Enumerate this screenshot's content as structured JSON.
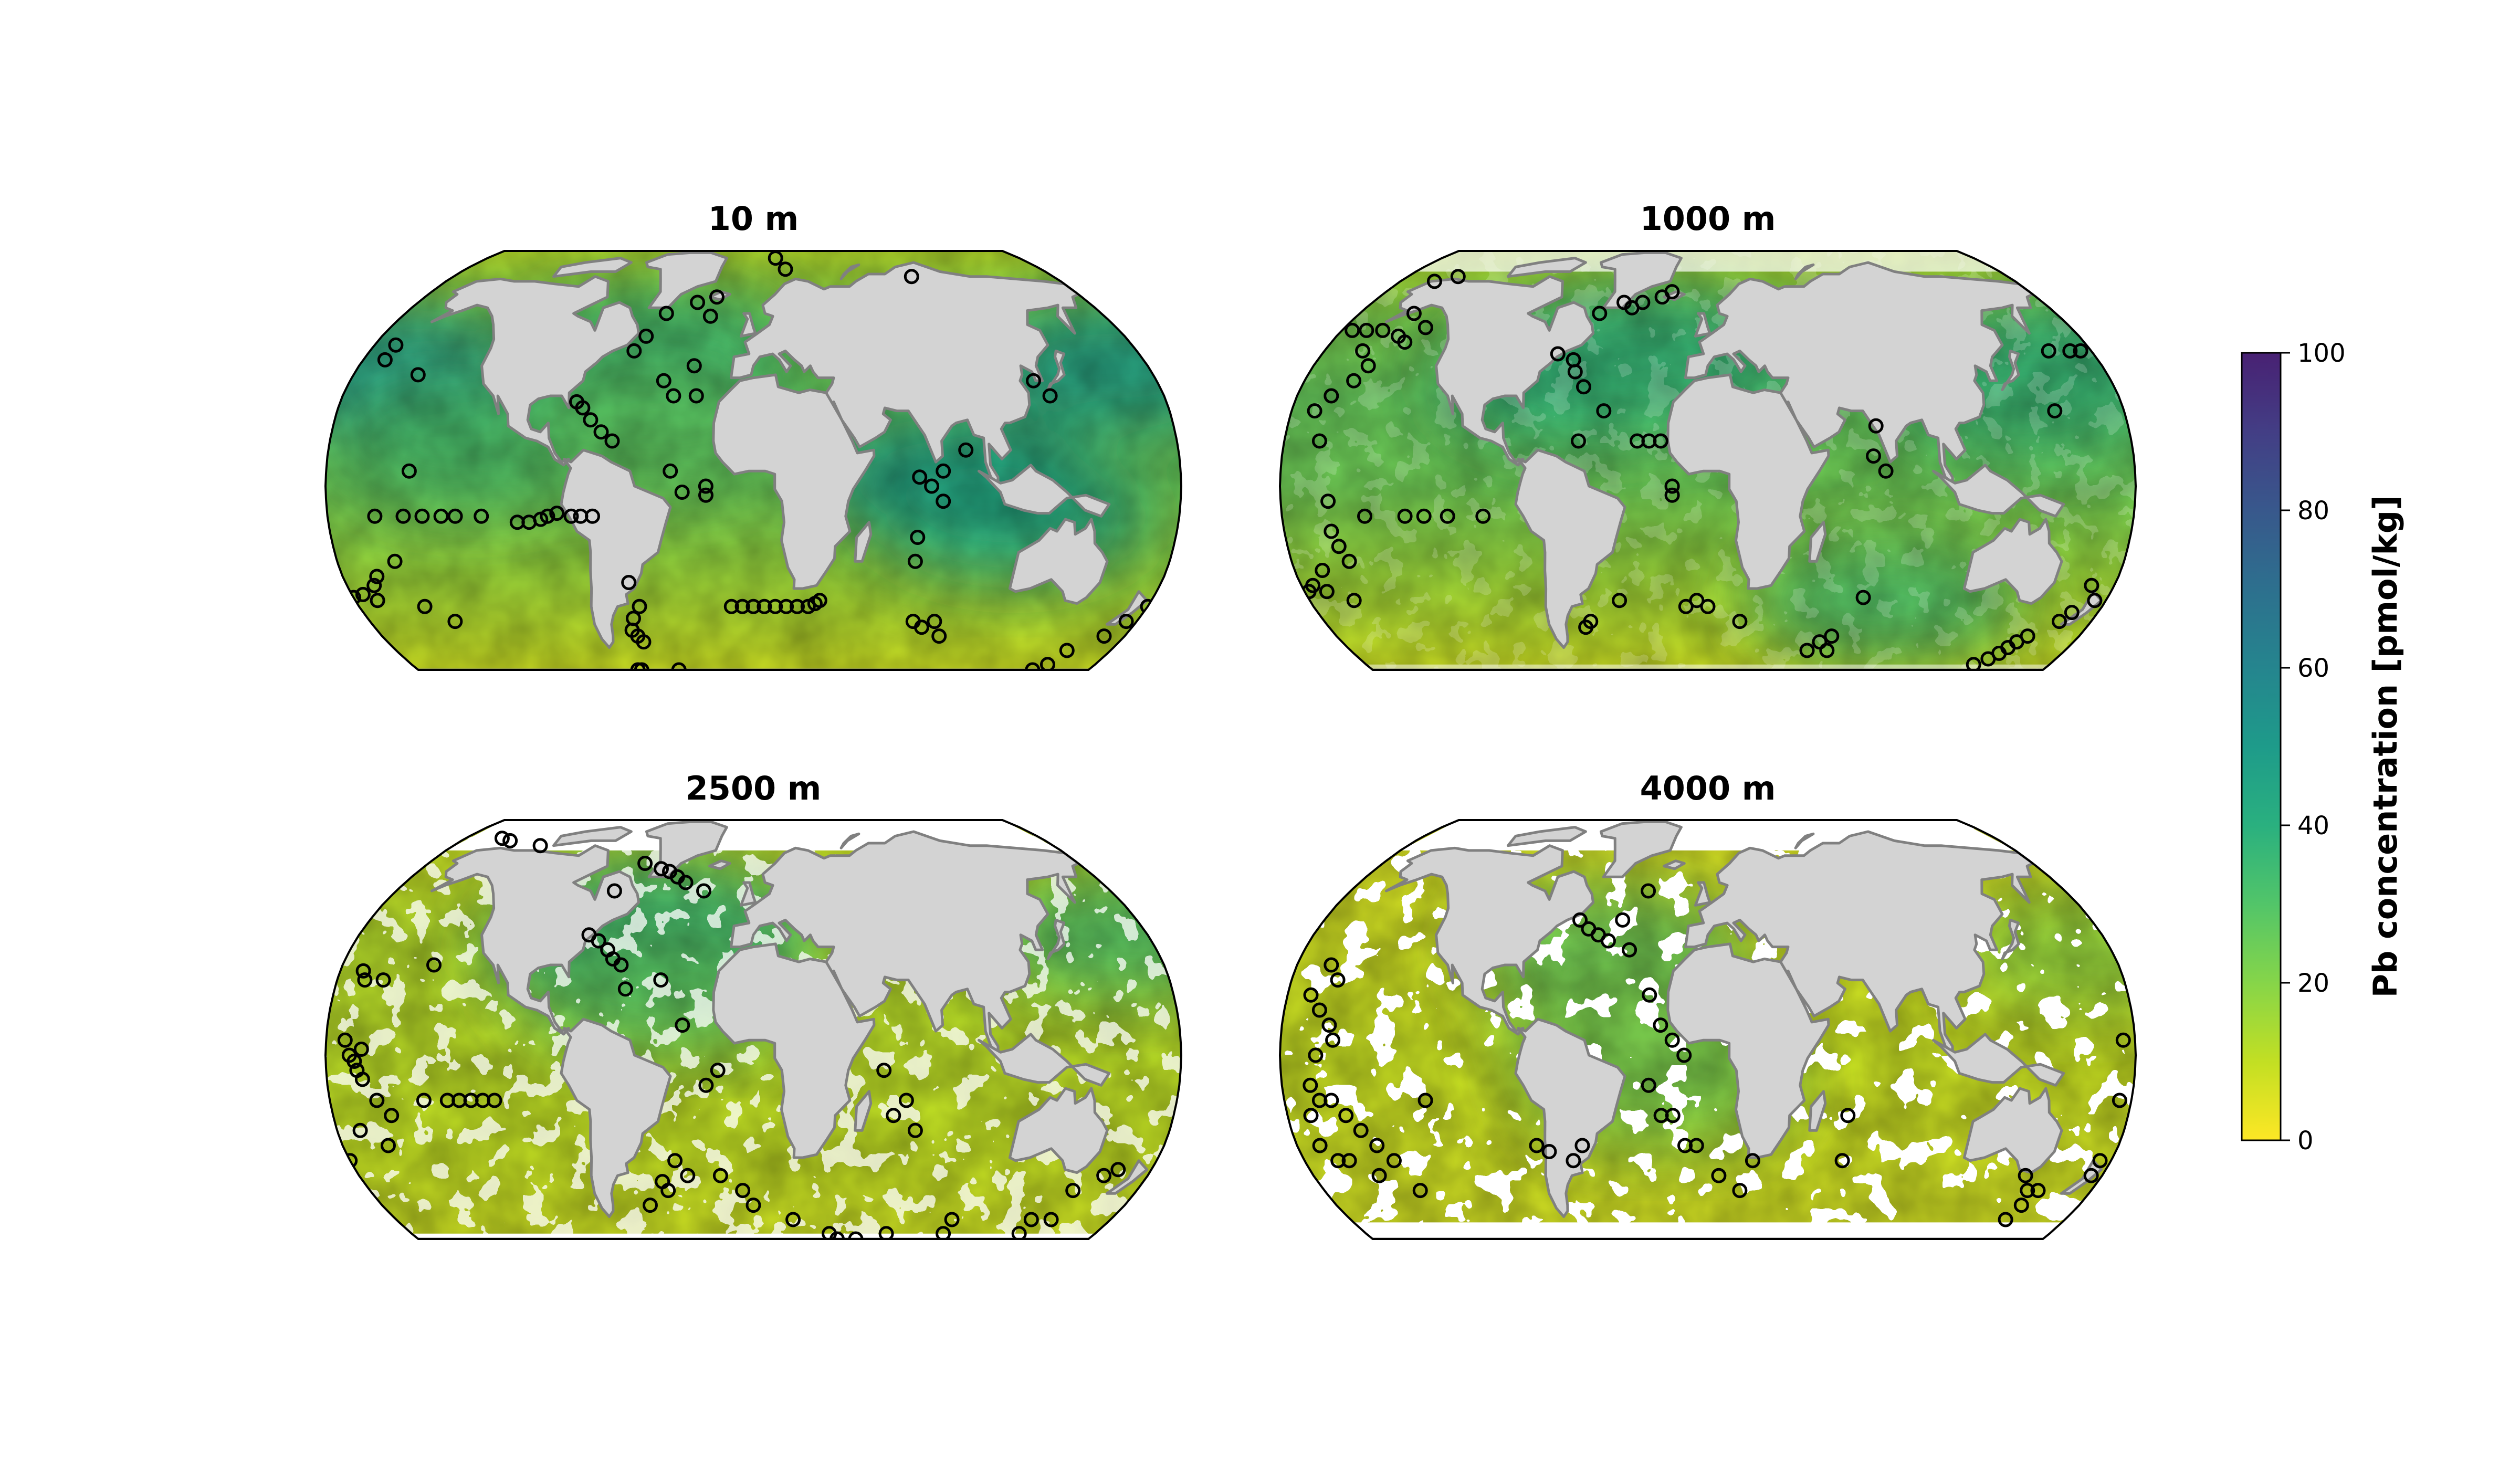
{
  "chart_data": {
    "type": "heatmap",
    "projection": "Robinson",
    "colormap": "viridis_r",
    "colorbar": {
      "label": "Pb concentration [pmol/kg]",
      "range": [
        0,
        100
      ],
      "ticks": [
        0,
        20,
        40,
        60,
        80,
        100
      ],
      "tick_labels": [
        "0",
        "20",
        "40",
        "60",
        "80",
        "100"
      ]
    },
    "colors": {
      "land": "#d3d3d3",
      "coastline": "#808080",
      "no_data": "#ffffff",
      "station_edge": "#000000"
    },
    "panels": [
      {
        "title": "10 m",
        "depth_m": 10,
        "ocean_coverage": "full",
        "high_regions": [
          {
            "lon": -165,
            "lat": 38,
            "value": 52
          },
          {
            "lon": 165,
            "lat": 40,
            "value": 48
          },
          {
            "lon": -45,
            "lat": 45,
            "value": 35
          },
          {
            "lon": 85,
            "lat": 2,
            "value": 50
          },
          {
            "lon": 110,
            "lat": -10,
            "value": 44
          },
          {
            "lon": -120,
            "lat": 15,
            "value": 32
          },
          {
            "lon": -40,
            "lat": 20,
            "value": 28
          }
        ],
        "stations": [
          [
            -170,
            47
          ],
          [
            -170,
            42
          ],
          [
            -151,
            37
          ],
          [
            -145,
            5
          ],
          [
            -155,
            -25
          ],
          [
            -165,
            -30
          ],
          [
            -168,
            -33
          ],
          [
            -150,
            -40
          ],
          [
            -140,
            -45
          ],
          [
            -160,
            -10
          ],
          [
            -148,
            -10
          ],
          [
            -140,
            -10
          ],
          [
            -132,
            -10
          ],
          [
            -126,
            -10
          ],
          [
            -115,
            -10
          ],
          [
            -100,
            -12
          ],
          [
            -95,
            -12
          ],
          [
            -90,
            -11
          ],
          [
            -87,
            -10
          ],
          [
            -83,
            -9
          ],
          [
            -77,
            -10
          ],
          [
            -73,
            -10
          ],
          [
            -68,
            -10
          ],
          [
            -77,
            28
          ],
          [
            -74,
            26
          ],
          [
            -70,
            22
          ],
          [
            -65,
            18
          ],
          [
            -60,
            15
          ],
          [
            -56,
            45
          ],
          [
            -52,
            50
          ],
          [
            -45,
            58
          ],
          [
            -30,
            62
          ],
          [
            -20,
            64
          ],
          [
            -22,
            57
          ],
          [
            -40,
            35
          ],
          [
            -35,
            30
          ],
          [
            -27,
            40
          ],
          [
            -25,
            30
          ],
          [
            -35,
            5
          ],
          [
            -30,
            -2
          ],
          [
            -20,
            0
          ],
          [
            -20,
            -3
          ],
          [
            -55,
            -32
          ],
          [
            -52,
            -40
          ],
          [
            -56,
            -44
          ],
          [
            -58,
            -48
          ],
          [
            -56,
            -50
          ],
          [
            -54,
            -52
          ],
          [
            -40,
            -62
          ],
          [
            -62,
            -64
          ],
          [
            -60,
            -66
          ],
          [
            -10,
            -40
          ],
          [
            -5,
            -40
          ],
          [
            0,
            -40
          ],
          [
            5,
            -40
          ],
          [
            10,
            -40
          ],
          [
            15,
            -40
          ],
          [
            20,
            -40
          ],
          [
            25,
            -40
          ],
          [
            28,
            -39
          ],
          [
            30,
            -38
          ],
          [
            70,
            -25
          ],
          [
            75,
            -45
          ],
          [
            80,
            -47
          ],
          [
            85,
            -45
          ],
          [
            90,
            -50
          ],
          [
            70,
            -17
          ],
          [
            75,
            0
          ],
          [
            80,
            -5
          ],
          [
            80,
            5
          ],
          [
            90,
            12
          ],
          [
            70,
            3
          ],
          [
            150,
            -62
          ],
          [
            155,
            -60
          ],
          [
            158,
            -55
          ],
          [
            170,
            -50
          ],
          [
            175,
            -45
          ],
          [
            180,
            -40
          ],
          [
            -180,
            -37
          ],
          [
            -175,
            -36
          ],
          [
            -170,
            -38
          ],
          [
            125,
            35
          ],
          [
            130,
            30
          ],
          [
            20,
            75
          ],
          [
            15,
            80
          ],
          [
            95,
            72
          ]
        ]
      },
      {
        "title": "1000 m",
        "depth_m": 1000,
        "ocean_coverage": "nearly full",
        "high_regions": [
          {
            "lon": -30,
            "lat": 45,
            "value": 45
          },
          {
            "lon": 160,
            "lat": 40,
            "value": 42
          },
          {
            "lon": -60,
            "lat": 35,
            "value": 38
          },
          {
            "lon": 140,
            "lat": 30,
            "value": 35
          },
          {
            "lon": -10,
            "lat": 40,
            "value": 36
          },
          {
            "lon": 80,
            "lat": -38,
            "value": 32
          }
        ],
        "stations": [
          [
            -160,
            70
          ],
          [
            -150,
            72
          ],
          [
            -175,
            52
          ],
          [
            -168,
            52
          ],
          [
            -160,
            52
          ],
          [
            -152,
            58
          ],
          [
            -150,
            50
          ],
          [
            -145,
            48
          ],
          [
            -140,
            53
          ],
          [
            -162,
            45
          ],
          [
            -155,
            40
          ],
          [
            -158,
            35
          ],
          [
            -165,
            30
          ],
          [
            -170,
            25
          ],
          [
            -165,
            15
          ],
          [
            -160,
            -5
          ],
          [
            -160,
            -15
          ],
          [
            -158,
            -20
          ],
          [
            -155,
            -25
          ],
          [
            -168,
            -28
          ],
          [
            -175,
            -33
          ],
          [
            -178,
            -35
          ],
          [
            -170,
            -35
          ],
          [
            -160,
            -38
          ],
          [
            -145,
            -10
          ],
          [
            -128,
            -10
          ],
          [
            -120,
            -10
          ],
          [
            -110,
            -10
          ],
          [
            -95,
            -10
          ],
          [
            -56,
            58
          ],
          [
            -45,
            62
          ],
          [
            -40,
            60
          ],
          [
            -35,
            62
          ],
          [
            -25,
            64
          ],
          [
            -20,
            66
          ],
          [
            -70,
            44
          ],
          [
            -62,
            42
          ],
          [
            -60,
            38
          ],
          [
            -55,
            33
          ],
          [
            -45,
            25
          ],
          [
            -55,
            15
          ],
          [
            -30,
            15
          ],
          [
            -25,
            15
          ],
          [
            -20,
            15
          ],
          [
            -15,
            -3
          ],
          [
            -15,
            0
          ],
          [
            -40,
            -38
          ],
          [
            -55,
            -45
          ],
          [
            -58,
            -47
          ],
          [
            -10,
            -40
          ],
          [
            -5,
            -38
          ],
          [
            0,
            -40
          ],
          [
            15,
            -45
          ],
          [
            70,
            -37
          ],
          [
            72,
            20
          ],
          [
            70,
            10
          ],
          [
            75,
            5
          ],
          [
            50,
            -55
          ],
          [
            60,
            -50
          ],
          [
            55,
            -52
          ],
          [
            60,
            -55
          ],
          [
            140,
            -60
          ],
          [
            145,
            -58
          ],
          [
            148,
            -56
          ],
          [
            150,
            -54
          ],
          [
            152,
            -52
          ],
          [
            155,
            -50
          ],
          [
            165,
            -45
          ],
          [
            168,
            -42
          ],
          [
            175,
            -38
          ],
          [
            -178,
            -35
          ],
          [
            170,
            -33
          ],
          [
            150,
            25
          ],
          [
            160,
            45
          ],
          [
            170,
            45
          ],
          [
            175,
            45
          ]
        ]
      },
      {
        "title": "2500 m",
        "depth_m": 2500,
        "ocean_coverage": "deep basins (white where seafloor is shallower)",
        "high_regions": [
          {
            "lon": -45,
            "lat": 45,
            "value": 40
          },
          {
            "lon": -60,
            "lat": 35,
            "value": 36
          },
          {
            "lon": -30,
            "lat": 40,
            "value": 34
          },
          {
            "lon": 170,
            "lat": 40,
            "value": 30
          },
          {
            "lon": -40,
            "lat": 20,
            "value": 28
          }
        ],
        "stations": [
          [
            -157,
            75
          ],
          [
            -150,
            74
          ],
          [
            -128,
            72
          ],
          [
            -140,
            30
          ],
          [
            -170,
            28
          ],
          [
            -160,
            25
          ],
          [
            -168,
            25
          ],
          [
            -172,
            5
          ],
          [
            -170,
            0
          ],
          [
            -165,
            2
          ],
          [
            -168,
            -2
          ],
          [
            -167,
            -5
          ],
          [
            -165,
            -8
          ],
          [
            -160,
            -15
          ],
          [
            -155,
            -20
          ],
          [
            -170,
            -25
          ],
          [
            -160,
            -30
          ],
          [
            -140,
            -15
          ],
          [
            -130,
            -15
          ],
          [
            -125,
            -15
          ],
          [
            -120,
            -15
          ],
          [
            -115,
            -15
          ],
          [
            -110,
            -15
          ],
          [
            -70,
            55
          ],
          [
            -60,
            65
          ],
          [
            -50,
            63
          ],
          [
            -45,
            62
          ],
          [
            -40,
            60
          ],
          [
            -35,
            58
          ],
          [
            -25,
            55
          ],
          [
            -75,
            40
          ],
          [
            -70,
            38
          ],
          [
            -65,
            35
          ],
          [
            -62,
            32
          ],
          [
            -58,
            30
          ],
          [
            -55,
            22
          ],
          [
            -40,
            25
          ],
          [
            -30,
            10
          ],
          [
            -15,
            -5
          ],
          [
            -20,
            -10
          ],
          [
            -35,
            -35
          ],
          [
            -30,
            -40
          ],
          [
            -42,
            -42
          ],
          [
            -40,
            -45
          ],
          [
            -50,
            -50
          ],
          [
            -15,
            -40
          ],
          [
            -5,
            -45
          ],
          [
            0,
            -50
          ],
          [
            20,
            -55
          ],
          [
            40,
            -60
          ],
          [
            45,
            -62
          ],
          [
            55,
            -62
          ],
          [
            70,
            -60
          ],
          [
            100,
            -60
          ],
          [
            100,
            -55
          ],
          [
            140,
            -60
          ],
          [
            140,
            -55
          ],
          [
            150,
            -55
          ],
          [
            150,
            -45
          ],
          [
            160,
            -40
          ],
          [
            165,
            -38
          ],
          [
            -180,
            -35
          ],
          [
            55,
            -5
          ],
          [
            60,
            -20
          ],
          [
            65,
            -15
          ],
          [
            70,
            -25
          ]
        ]
      },
      {
        "title": "4000 m",
        "depth_m": 4000,
        "ocean_coverage": "abyssal basins only (large white areas over ridges and shelves)",
        "high_regions": [
          {
            "lon": -45,
            "lat": 35,
            "value": 26
          },
          {
            "lon": -30,
            "lat": 10,
            "value": 22
          },
          {
            "lon": -20,
            "lat": -10,
            "value": 22
          },
          {
            "lon": 170,
            "lat": 35,
            "value": 18
          }
        ],
        "stations": [
          [
            -165,
            30
          ],
          [
            -160,
            25
          ],
          [
            -170,
            20
          ],
          [
            -165,
            15
          ],
          [
            -160,
            10
          ],
          [
            -158,
            5
          ],
          [
            -165,
            0
          ],
          [
            -168,
            -10
          ],
          [
            -165,
            -15
          ],
          [
            -170,
            -20
          ],
          [
            -160,
            -15
          ],
          [
            -155,
            -20
          ],
          [
            -150,
            -25
          ],
          [
            -145,
            -30
          ],
          [
            -140,
            -35
          ],
          [
            -170,
            -30
          ],
          [
            -165,
            -35
          ],
          [
            -160,
            -35
          ],
          [
            -150,
            -40
          ],
          [
            -135,
            -45
          ],
          [
            -120,
            -15
          ],
          [
            -75,
            -30
          ],
          [
            -70,
            -32
          ],
          [
            -60,
            -35
          ],
          [
            -55,
            -30
          ],
          [
            -60,
            45
          ],
          [
            -55,
            42
          ],
          [
            -50,
            40
          ],
          [
            -45,
            38
          ],
          [
            -40,
            45
          ],
          [
            -30,
            55
          ],
          [
            -35,
            35
          ],
          [
            -25,
            20
          ],
          [
            -20,
            10
          ],
          [
            -15,
            5
          ],
          [
            -10,
            0
          ],
          [
            -20,
            -20
          ],
          [
            -10,
            -30
          ],
          [
            -5,
            -30
          ],
          [
            -25,
            -10
          ],
          [
            -15,
            -20
          ],
          [
            20,
            -35
          ],
          [
            5,
            -40
          ],
          [
            15,
            -45
          ],
          [
            60,
            -20
          ],
          [
            60,
            -35
          ],
          [
            150,
            -55
          ],
          [
            152,
            -50
          ],
          [
            155,
            -45
          ],
          [
            175,
            -40
          ],
          [
            175,
            -35
          ],
          [
            175,
            -15
          ],
          [
            175,
            5
          ],
          [
            150,
            -45
          ],
          [
            145,
            -40
          ]
        ]
      }
    ]
  }
}
